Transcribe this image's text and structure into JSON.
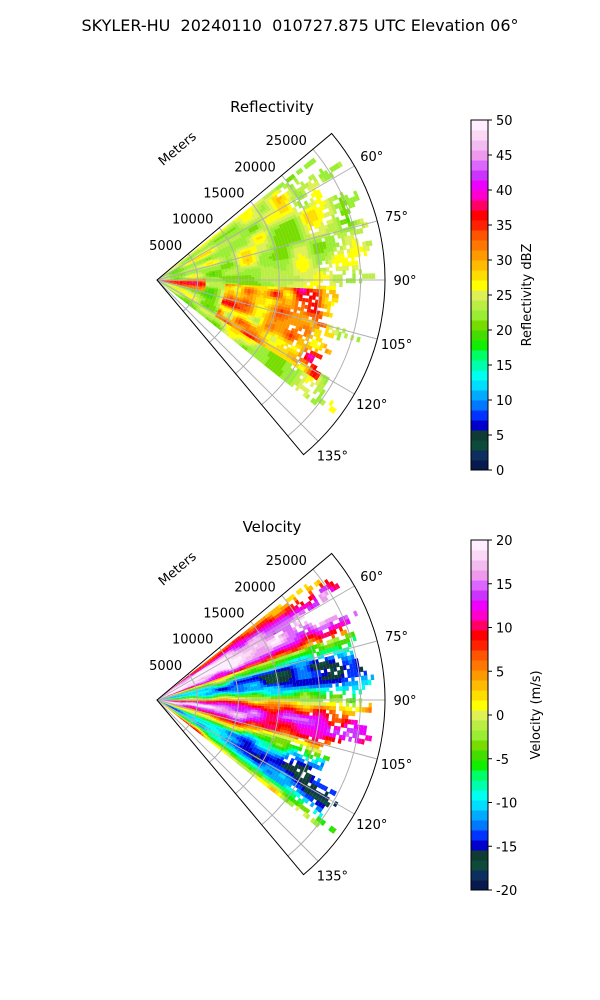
{
  "title": "SKYLER-HU  20240110  010727.875 UTC Elevation 06°",
  "colors": {
    "reflectivity_bar": [
      "#081a4d",
      "#0c2f5e",
      "#0d4a3a",
      "#0f3b34",
      "#0000cc",
      "#0033ff",
      "#0077ff",
      "#00aaff",
      "#00ddff",
      "#00ffee",
      "#00ffaa",
      "#00ff66",
      "#11ee00",
      "#44dd00",
      "#77dd00",
      "#99ee33",
      "#bbee44",
      "#ddf055",
      "#ffff00",
      "#ffdd00",
      "#ffbb00",
      "#ff9900",
      "#ff7700",
      "#ff5500",
      "#ff2200",
      "#ff0000",
      "#ff0066",
      "#ff00cc",
      "#ee00ff",
      "#cc33ff",
      "#dd66ff",
      "#ee99ee",
      "#f4bbf0",
      "#fad8f6",
      "#ffeeff"
    ],
    "velocity_bar": [
      "#081a4d",
      "#0c2f5e",
      "#0d4a3a",
      "#0f3b34",
      "#0000cc",
      "#0033ff",
      "#0077ff",
      "#00aaff",
      "#00ddff",
      "#00ffee",
      "#00ffaa",
      "#00ff66",
      "#11ee00",
      "#44dd00",
      "#77dd00",
      "#99ee33",
      "#bbee44",
      "#ddf055",
      "#ffff00",
      "#ffdd00",
      "#ffbb00",
      "#ff9900",
      "#ff7700",
      "#ff5500",
      "#ff2200",
      "#ff0000",
      "#ff0066",
      "#ff00cc",
      "#ee00ff",
      "#cc33ff",
      "#dd66ff",
      "#ee99ee",
      "#f4bbf0",
      "#fad8f6",
      "#ffeeff"
    ]
  },
  "chart_data": [
    {
      "type": "polar-ppi",
      "title": "Reflectivity",
      "radial_label": "Meters",
      "radial_ticks": [
        5000,
        10000,
        15000,
        20000,
        25000
      ],
      "r_max": 28000,
      "theta_range_deg": [
        50,
        140
      ],
      "theta_ticks": [
        "60°",
        "75°",
        "90°",
        "105°",
        "120°",
        "135°"
      ],
      "theta_tick_values": [
        60,
        75,
        90,
        105,
        120,
        135
      ],
      "colorbar": {
        "label": "Reflectivity dBZ",
        "min": 0,
        "max": 50,
        "ticks": [
          0,
          5,
          10,
          15,
          20,
          25,
          30,
          35,
          40,
          45,
          50
        ]
      },
      "field": {
        "azimuth_coverage_deg": [
          52,
          128
        ],
        "typical_value": 24,
        "core_value": 36
      }
    },
    {
      "type": "polar-ppi",
      "title": "Velocity",
      "radial_label": "Meters",
      "radial_ticks": [
        5000,
        10000,
        15000,
        20000,
        25000
      ],
      "r_max": 28000,
      "theta_range_deg": [
        50,
        140
      ],
      "theta_ticks": [
        "60°",
        "75°",
        "90°",
        "105°",
        "120°",
        "135°"
      ],
      "theta_tick_values": [
        60,
        75,
        90,
        105,
        120,
        135
      ],
      "colorbar": {
        "label": "Velocity (m/s)",
        "min": -20,
        "max": 20,
        "ticks": [
          -20,
          -15,
          -10,
          -5,
          0,
          5,
          10,
          15,
          20
        ]
      },
      "field": {
        "azimuth_coverage_deg": [
          52,
          128
        ],
        "typical_value": 0,
        "core_value": 12
      }
    }
  ]
}
